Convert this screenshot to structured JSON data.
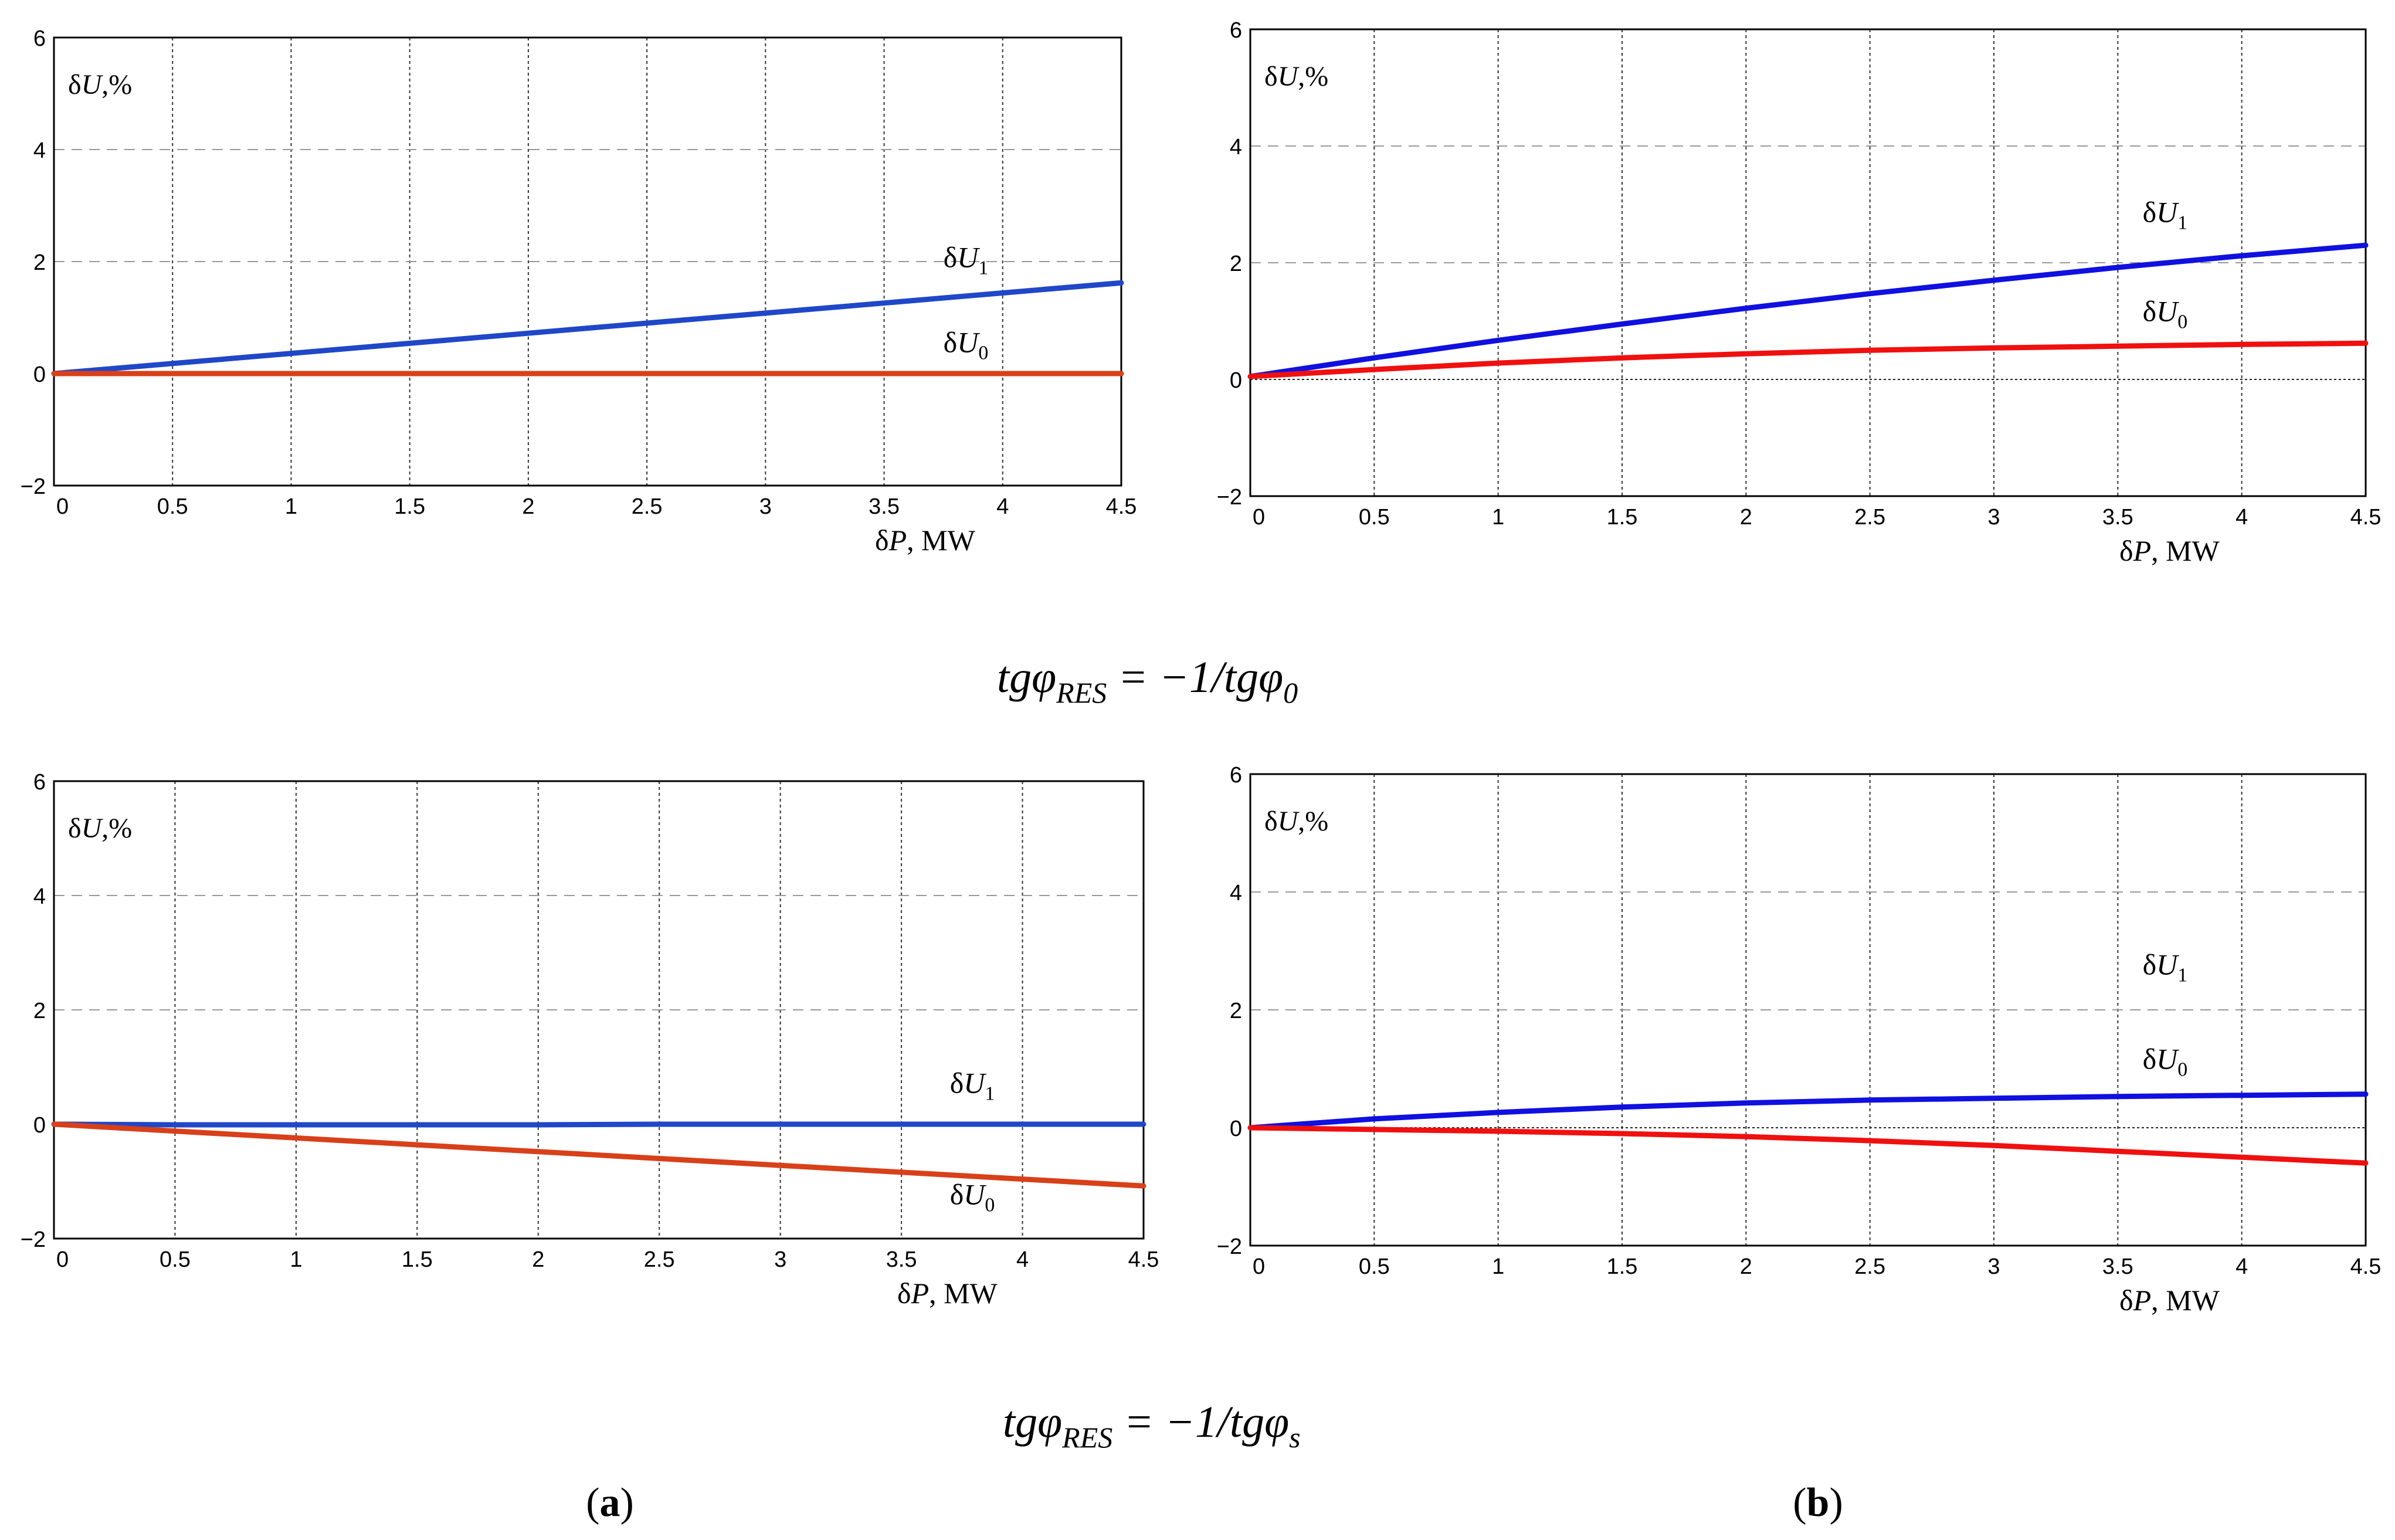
{
  "figure": {
    "formula_top": {
      "lhs": "tgφ",
      "lhs_sub": "RES",
      "rhs": " = −1/tgφ",
      "rhs_sub": "0"
    },
    "formula_bottom": {
      "lhs": "tgφ",
      "lhs_sub": "RES",
      "rhs": " = −1/tgφ",
      "rhs_sub": "s"
    },
    "panel_label_a": {
      "open": "(",
      "letter": "a",
      "close": ")"
    },
    "panel_label_b": {
      "open": "(",
      "letter": "b",
      "close": ")"
    }
  },
  "chart_data": [
    {
      "id": "top-left",
      "type": "line",
      "ylabel_prefix": "δ",
      "ylabel_var": "U",
      "ylabel_suffix": ",%",
      "xlabel_prefix": "δ",
      "xlabel_var": "P",
      "xlabel_suffix": ", MW",
      "xlim": [
        0,
        4.5
      ],
      "ylim": [
        -2,
        6
      ],
      "xticks": [
        0,
        0.5,
        1,
        1.5,
        2,
        2.5,
        3,
        3.5,
        4,
        4.5
      ],
      "xtick_labels": [
        "0",
        "0.5",
        "1",
        "1.5",
        "2",
        "2.5",
        "3",
        "3.5",
        "4",
        "4.5"
      ],
      "yticks": [
        -2,
        0,
        2,
        4,
        6
      ],
      "ytick_labels": [
        "−2",
        "0",
        "2",
        "4",
        "6"
      ],
      "zero_line": false,
      "series": [
        {
          "name": "δU1",
          "label_main": "δU",
          "label_sub": "1",
          "color": "#1f47c8",
          "x": [
            0,
            0.5,
            1,
            1.5,
            2,
            2.5,
            3,
            3.5,
            4,
            4.5
          ],
          "y": [
            0,
            0.18,
            0.36,
            0.54,
            0.72,
            0.9,
            1.08,
            1.26,
            1.44,
            1.62
          ],
          "label_at": [
            3.75,
            1.9
          ]
        },
        {
          "name": "δU0",
          "label_main": "δU",
          "label_sub": "0",
          "color": "#d8401a",
          "x": [
            0,
            0.5,
            1,
            1.5,
            2,
            2.5,
            3,
            3.5,
            4,
            4.5
          ],
          "y": [
            0,
            0,
            0,
            0,
            0,
            0,
            0,
            0,
            0,
            0
          ],
          "label_at": [
            3.75,
            0.38
          ]
        }
      ]
    },
    {
      "id": "top-right",
      "type": "line",
      "ylabel_prefix": "δ",
      "ylabel_var": "U",
      "ylabel_suffix": ",%",
      "xlabel_prefix": "δ",
      "xlabel_var": "P",
      "xlabel_suffix": ", MW",
      "xlim": [
        0,
        4.5
      ],
      "ylim": [
        -2,
        6
      ],
      "xticks": [
        0,
        0.5,
        1,
        1.5,
        2,
        2.5,
        3,
        3.5,
        4,
        4.5
      ],
      "xtick_labels": [
        "0",
        "0.5",
        "1",
        "1.5",
        "2",
        "2.5",
        "3",
        "3.5",
        "4",
        "4.5"
      ],
      "yticks": [
        -2,
        0,
        2,
        4,
        6
      ],
      "ytick_labels": [
        "−2",
        "0",
        "2",
        "4",
        "6"
      ],
      "zero_line": true,
      "series": [
        {
          "name": "δU1",
          "label_main": "δU",
          "label_sub": "1",
          "color": "#1010e0",
          "x": [
            0,
            0.5,
            1,
            1.5,
            2,
            2.5,
            3,
            3.5,
            4,
            4.5
          ],
          "y": [
            0.05,
            0.37,
            0.67,
            0.95,
            1.22,
            1.47,
            1.7,
            1.92,
            2.12,
            2.3
          ],
          "label_at": [
            3.6,
            2.7
          ]
        },
        {
          "name": "δU0",
          "label_main": "δU",
          "label_sub": "0",
          "color": "#f01010",
          "x": [
            0,
            0.5,
            1,
            1.5,
            2,
            2.5,
            3,
            3.5,
            4,
            4.5
          ],
          "y": [
            0.05,
            0.17,
            0.28,
            0.37,
            0.44,
            0.5,
            0.54,
            0.57,
            0.6,
            0.62
          ],
          "label_at": [
            3.6,
            1.0
          ]
        }
      ]
    },
    {
      "id": "bottom-left",
      "type": "line",
      "ylabel_prefix": "δ",
      "ylabel_var": "U",
      "ylabel_suffix": ",%",
      "xlabel_prefix": "δ",
      "xlabel_var": "P",
      "xlabel_suffix": ", MW",
      "xlim": [
        0,
        4.5
      ],
      "ylim": [
        -2,
        6
      ],
      "xticks": [
        0,
        0.5,
        1,
        1.5,
        2,
        2.5,
        3,
        3.5,
        4,
        4.5
      ],
      "xtick_labels": [
        "0",
        "0.5",
        "1",
        "1.5",
        "2",
        "2.5",
        "3",
        "3.5",
        "4",
        "4.5"
      ],
      "yticks": [
        -2,
        0,
        2,
        4,
        6
      ],
      "ytick_labels": [
        "−2",
        "0",
        "2",
        "4",
        "6"
      ],
      "zero_line": false,
      "series": [
        {
          "name": "δU1",
          "label_main": "δU",
          "label_sub": "1",
          "color": "#1f47c8",
          "x": [
            0,
            0.5,
            1,
            1.5,
            2,
            2.5,
            3,
            3.5,
            4,
            4.5
          ],
          "y": [
            0,
            -0.01,
            -0.01,
            -0.01,
            -0.01,
            0,
            0,
            0,
            0,
            0
          ],
          "label_at": [
            3.7,
            0.55
          ]
        },
        {
          "name": "δU0",
          "label_main": "δU",
          "label_sub": "0",
          "color": "#d8401a",
          "x": [
            0,
            0.5,
            1,
            1.5,
            2,
            2.5,
            3,
            3.5,
            4,
            4.5
          ],
          "y": [
            0,
            -0.12,
            -0.24,
            -0.36,
            -0.48,
            -0.6,
            -0.72,
            -0.84,
            -0.96,
            -1.08
          ],
          "label_at": [
            3.7,
            -1.4
          ]
        }
      ]
    },
    {
      "id": "bottom-right",
      "type": "line",
      "ylabel_prefix": "δ",
      "ylabel_var": "U",
      "ylabel_suffix": ",%",
      "xlabel_prefix": "δ",
      "xlabel_var": "P",
      "xlabel_suffix": ", MW",
      "xlim": [
        0,
        4.5
      ],
      "ylim": [
        -2,
        6
      ],
      "xticks": [
        0,
        0.5,
        1,
        1.5,
        2,
        2.5,
        3,
        3.5,
        4,
        4.5
      ],
      "xtick_labels": [
        "0",
        "0.5",
        "1",
        "1.5",
        "2",
        "2.5",
        "3",
        "3.5",
        "4",
        "4.5"
      ],
      "yticks": [
        -2,
        0,
        2,
        4,
        6
      ],
      "ytick_labels": [
        "−2",
        "0",
        "2",
        "4",
        "6"
      ],
      "zero_line": true,
      "series": [
        {
          "name": "δU1",
          "label_main": "δU",
          "label_sub": "1",
          "color": "#1010e0",
          "x": [
            0,
            0.5,
            1,
            1.5,
            2,
            2.5,
            3,
            3.5,
            4,
            4.5
          ],
          "y": [
            0,
            0.15,
            0.26,
            0.35,
            0.42,
            0.47,
            0.5,
            0.53,
            0.55,
            0.57
          ],
          "label_at": [
            3.6,
            2.6
          ]
        },
        {
          "name": "δU0",
          "label_main": "δU",
          "label_sub": "0",
          "color": "#f01010",
          "x": [
            0,
            0.5,
            1,
            1.5,
            2,
            2.5,
            3,
            3.5,
            4,
            4.5
          ],
          "y": [
            0,
            -0.03,
            -0.06,
            -0.1,
            -0.15,
            -0.22,
            -0.3,
            -0.4,
            -0.5,
            -0.6
          ],
          "label_at": [
            3.6,
            1.0
          ]
        }
      ]
    }
  ]
}
